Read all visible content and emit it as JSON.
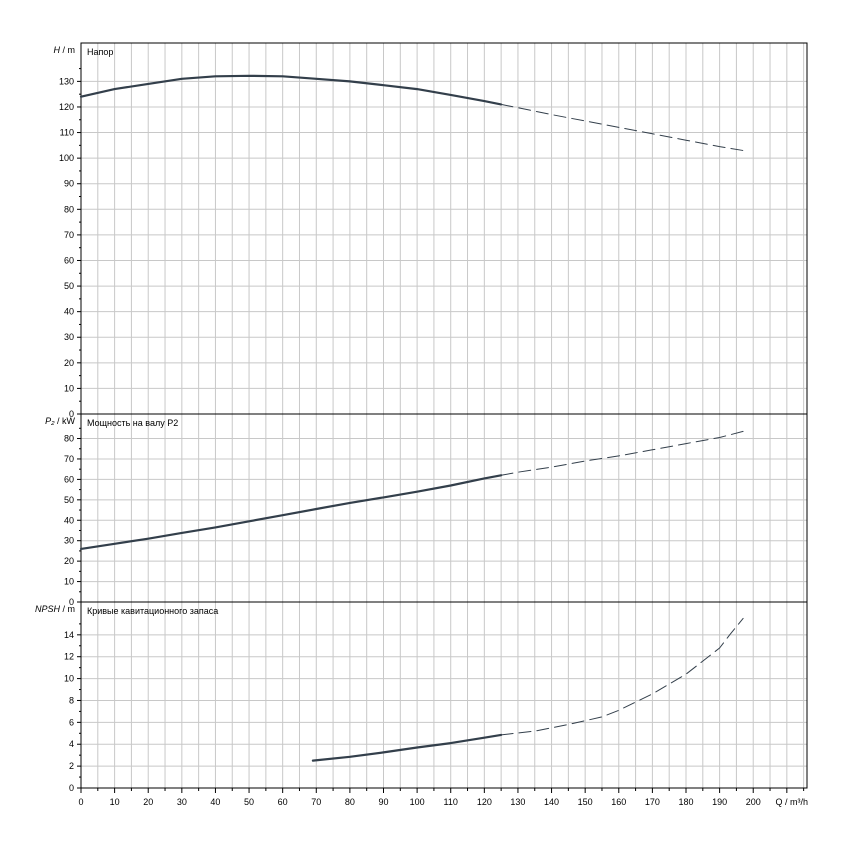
{
  "chart_data": [
    {
      "type": "line",
      "title": "Напор",
      "ylabel": "H",
      "ylabel_unit": " / m",
      "ylim": [
        0,
        145
      ],
      "yticks": [
        0,
        10,
        20,
        30,
        40,
        50,
        60,
        70,
        80,
        90,
        100,
        110,
        120,
        130
      ],
      "series": [
        {
          "style": "solid",
          "points": [
            [
              0,
              124
            ],
            [
              10,
              127
            ],
            [
              20,
              129
            ],
            [
              30,
              131
            ],
            [
              40,
              132
            ],
            [
              50,
              132.2
            ],
            [
              60,
              132
            ],
            [
              70,
              131
            ],
            [
              80,
              130
            ],
            [
              90,
              128.5
            ],
            [
              100,
              127
            ],
            [
              110,
              124.7
            ],
            [
              120,
              122.3
            ],
            [
              125,
              121
            ]
          ]
        },
        {
          "style": "dashed",
          "points": [
            [
              125,
              121
            ],
            [
              130,
              119.7
            ],
            [
              140,
              117
            ],
            [
              150,
              114.5
            ],
            [
              160,
              112
            ],
            [
              170,
              109.5
            ],
            [
              180,
              107
            ],
            [
              190,
              104.5
            ],
            [
              197,
              103
            ]
          ]
        }
      ]
    },
    {
      "type": "line",
      "title": "Мощность на валу P2",
      "ylabel": "P₂",
      "ylabel_unit": " / kW",
      "ylim": [
        0,
        92
      ],
      "yticks": [
        0,
        10,
        20,
        30,
        40,
        50,
        60,
        70,
        80
      ],
      "series": [
        {
          "style": "solid",
          "points": [
            [
              0,
              26
            ],
            [
              10,
              28.5
            ],
            [
              20,
              31
            ],
            [
              30,
              33.8
            ],
            [
              40,
              36.5
            ],
            [
              50,
              39.5
            ],
            [
              60,
              42.5
            ],
            [
              70,
              45.5
            ],
            [
              80,
              48.5
            ],
            [
              90,
              51.2
            ],
            [
              100,
              54
            ],
            [
              110,
              57
            ],
            [
              120,
              60.5
            ],
            [
              125,
              62
            ]
          ]
        },
        {
          "style": "dashed",
          "points": [
            [
              125,
              62
            ],
            [
              130,
              63.5
            ],
            [
              140,
              66
            ],
            [
              150,
              69
            ],
            [
              160,
              71.5
            ],
            [
              170,
              74.5
            ],
            [
              180,
              77.5
            ],
            [
              190,
              80.5
            ],
            [
              197,
              83.5
            ]
          ]
        }
      ]
    },
    {
      "type": "line",
      "title": "Кривые кавитационного запаса",
      "ylabel": "NPSH",
      "ylabel_unit": " / m",
      "ylim": [
        0,
        17
      ],
      "yticks": [
        0,
        2,
        4,
        6,
        8,
        10,
        12,
        14
      ],
      "xlabel": "Q / m³/h",
      "xlim": [
        0,
        216
      ],
      "xticks": [
        0,
        10,
        20,
        30,
        40,
        50,
        60,
        70,
        80,
        90,
        100,
        110,
        120,
        130,
        140,
        150,
        160,
        170,
        180,
        190,
        200
      ],
      "series": [
        {
          "style": "solid",
          "points": [
            [
              69,
              2.5
            ],
            [
              80,
              2.85
            ],
            [
              90,
              3.25
            ],
            [
              100,
              3.7
            ],
            [
              110,
              4.1
            ],
            [
              120,
              4.6
            ],
            [
              125,
              4.85
            ]
          ]
        },
        {
          "style": "dashed",
          "points": [
            [
              125,
              4.85
            ],
            [
              135,
              5.2
            ],
            [
              145,
              5.8
            ],
            [
              155,
              6.5
            ],
            [
              160,
              7.1
            ],
            [
              170,
              8.6
            ],
            [
              180,
              10.4
            ],
            [
              190,
              12.8
            ],
            [
              193,
              14
            ],
            [
              197,
              15.5
            ]
          ]
        }
      ]
    }
  ]
}
